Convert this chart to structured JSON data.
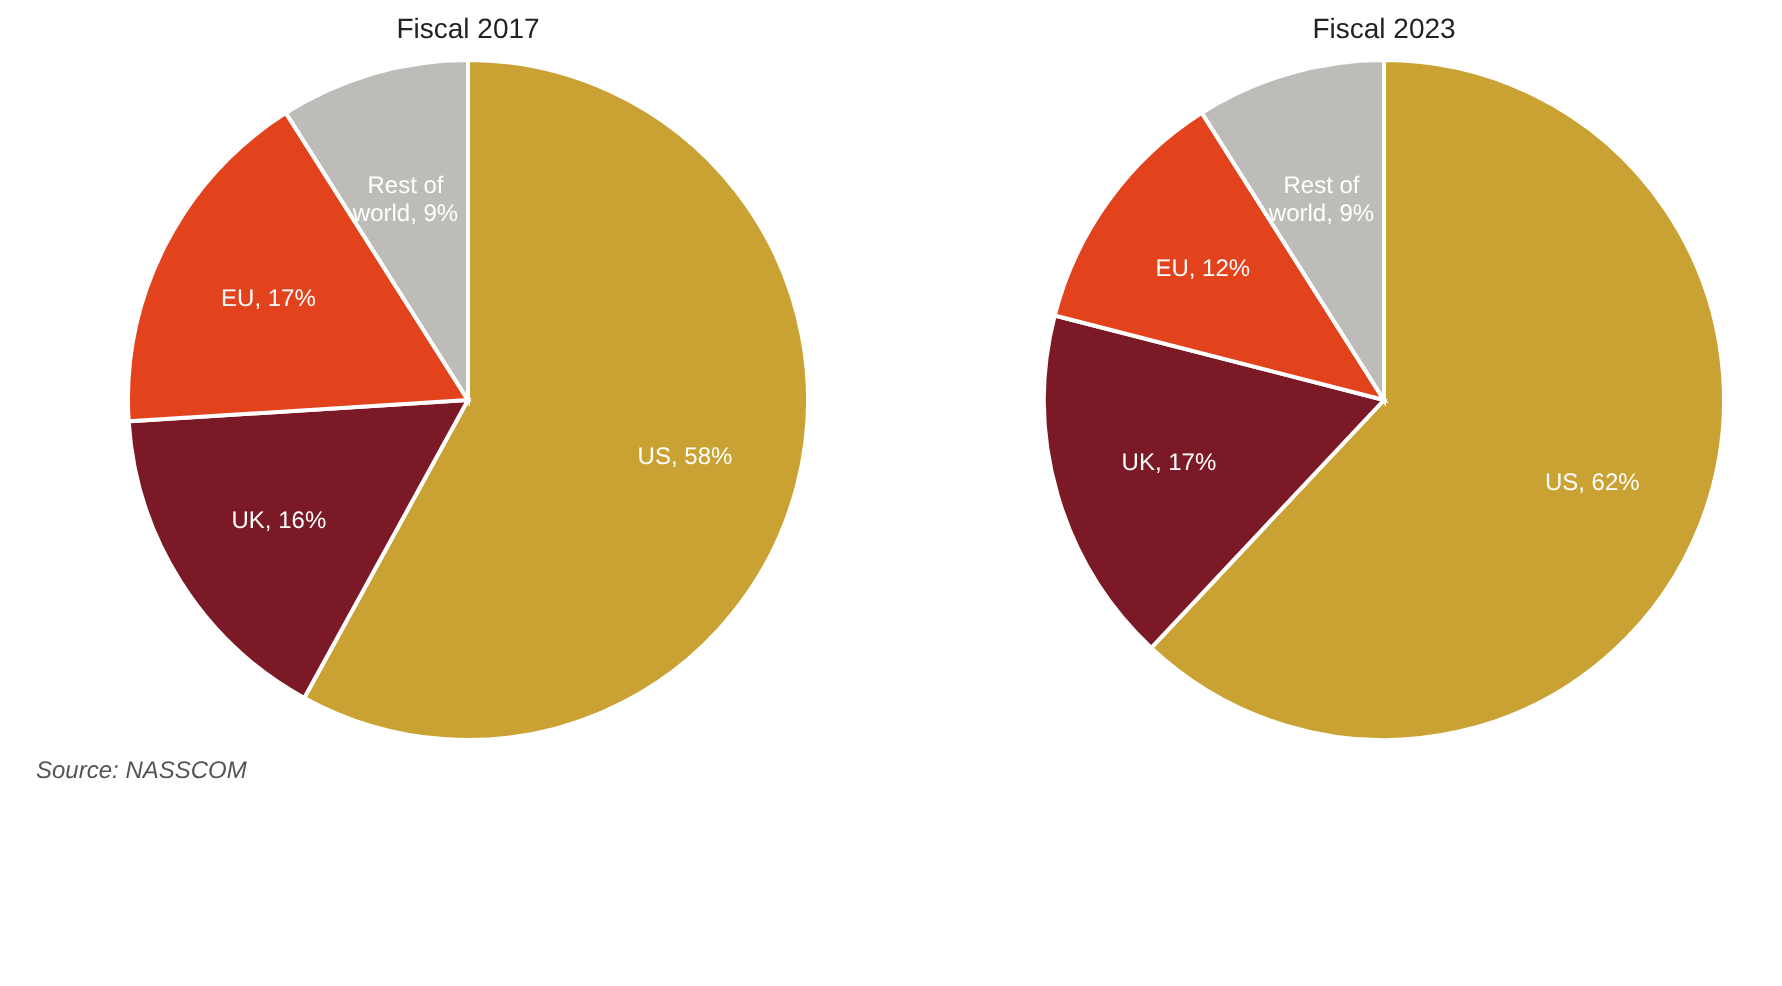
{
  "chart_data": [
    {
      "type": "pie",
      "title": "Fiscal 2017",
      "categories": [
        "US",
        "UK",
        "EU",
        "Rest of world"
      ],
      "values": [
        58,
        16,
        17,
        9
      ],
      "colors": [
        "#c9a233",
        "#7b1a26",
        "#e2431d",
        "#bdbcb8"
      ],
      "value_labels": [
        "58%",
        "16%",
        "17%",
        "9%"
      ],
      "legend": false,
      "annotations": [
        "Source: NASSCOM"
      ]
    },
    {
      "type": "pie",
      "title": "Fiscal 2023",
      "categories": [
        "US",
        "UK",
        "EU",
        "Rest of world"
      ],
      "values": [
        62,
        17,
        12,
        9
      ],
      "colors": [
        "#c9a233",
        "#7b1a26",
        "#e2431d",
        "#bdbcb8"
      ],
      "value_labels": [
        "62%",
        "17%",
        "12%",
        "9%"
      ],
      "legend": false
    }
  ]
}
